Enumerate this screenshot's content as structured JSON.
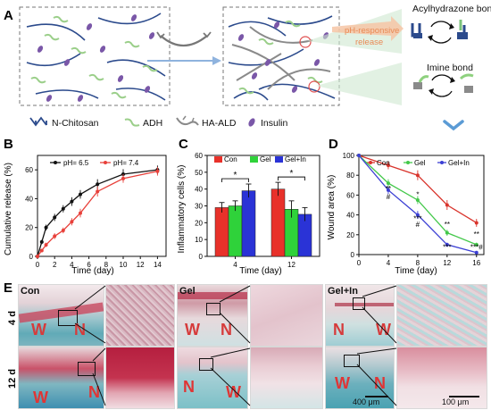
{
  "panel_a": {
    "letter": "A",
    "arrow_text": "pH-responsive release",
    "acyl_label": "Acylhydrazone bond",
    "imine_label": "Imine bond",
    "legend": [
      {
        "label": "N-Chitosan",
        "icon": "chitosan-icon",
        "color": "#2b4a8c"
      },
      {
        "label": "ADH",
        "icon": "adh-icon",
        "color": "#9bcf8a"
      },
      {
        "label": "HA-ALD",
        "icon": "ha-ald-icon",
        "color": "#8a8a8a"
      },
      {
        "label": "Insulin",
        "icon": "insulin-icon",
        "color": "#7a57a8"
      }
    ],
    "release_color": "#f0a070",
    "chevron_color": "#5b9bd5"
  },
  "panel_b": {
    "letter": "B",
    "chart_data": {
      "type": "line",
      "xlabel": "Time (day)",
      "ylabel": "Cumulative release (%)",
      "xlim": [
        0,
        15
      ],
      "ylim": [
        0,
        70
      ],
      "xticks": [
        0,
        2,
        4,
        6,
        8,
        10,
        12,
        14
      ],
      "yticks": [
        0,
        20,
        40,
        60
      ],
      "legend_position": "top-center",
      "series": [
        {
          "name": "pH= 6.5",
          "color": "#111111",
          "x": [
            0,
            0.5,
            1,
            2,
            3,
            4,
            5,
            7,
            10,
            14
          ],
          "y": [
            0,
            10,
            20,
            27,
            33,
            38,
            43,
            50,
            57,
            60
          ],
          "err": [
            0,
            1.5,
            2,
            2.5,
            2.5,
            3,
            3,
            3.5,
            3.5,
            3
          ]
        },
        {
          "name": "pH= 7.4",
          "color": "#e8403a",
          "x": [
            0,
            0.5,
            1,
            2,
            3,
            4,
            5,
            7,
            10,
            14
          ],
          "y": [
            0,
            4,
            8,
            14,
            18,
            24,
            30,
            45,
            54,
            59
          ],
          "err": [
            0,
            1,
            1.5,
            2,
            2,
            2.5,
            3,
            3.5,
            3,
            3
          ]
        }
      ]
    }
  },
  "panel_c": {
    "letter": "C",
    "chart_data": {
      "type": "bar",
      "xlabel": "Time (day)",
      "ylabel": "Inflammatory cells (%)",
      "ylim": [
        0,
        60
      ],
      "yticks": [
        0,
        10,
        20,
        30,
        40,
        50,
        60
      ],
      "categories": [
        "4",
        "12"
      ],
      "legend_position": "top",
      "series": [
        {
          "name": "Con",
          "color": "#e8312a",
          "values": [
            29,
            40
          ],
          "err": [
            3,
            4
          ]
        },
        {
          "name": "Gel",
          "color": "#2fd23a",
          "values": [
            30,
            28
          ],
          "err": [
            3,
            5
          ]
        },
        {
          "name": "Gel+In",
          "color": "#2a33d6",
          "values": [
            39,
            25
          ],
          "err": [
            4,
            4
          ]
        }
      ],
      "significance": [
        {
          "label": "*",
          "group": 0
        },
        {
          "label": "*",
          "group": 1
        }
      ]
    }
  },
  "panel_d": {
    "letter": "D",
    "chart_data": {
      "type": "line",
      "xlabel": "Time (day)",
      "ylabel": "Wound area (%)",
      "xlim": [
        0,
        17
      ],
      "ylim": [
        0,
        100
      ],
      "xticks": [
        0,
        4,
        8,
        12,
        16
      ],
      "yticks": [
        0,
        20,
        40,
        60,
        80,
        100
      ],
      "legend_position": "top",
      "series": [
        {
          "name": "Con",
          "color": "#d9342c",
          "x": [
            0,
            4,
            8,
            12,
            16
          ],
          "y": [
            100,
            90,
            80,
            50,
            32
          ],
          "err": [
            0,
            4,
            5,
            5,
            4
          ]
        },
        {
          "name": "Gel",
          "color": "#43c84a",
          "x": [
            0,
            4,
            8,
            12,
            16
          ],
          "y": [
            100,
            72,
            55,
            22,
            10
          ],
          "err": [
            0,
            4,
            4,
            3,
            2
          ]
        },
        {
          "name": "Gel+In",
          "color": "#3b3fd4",
          "x": [
            0,
            4,
            8,
            12,
            16
          ],
          "y": [
            100,
            65,
            40,
            10,
            2
          ],
          "err": [
            0,
            4,
            4,
            2,
            1
          ]
        }
      ],
      "annotations": [
        {
          "text": "**",
          "x": 4,
          "y": 64
        },
        {
          "text": "#",
          "x": 4,
          "y": 56
        },
        {
          "text": "*",
          "x": 8,
          "y": 58
        },
        {
          "text": "***",
          "x": 8,
          "y": 34
        },
        {
          "text": "#",
          "x": 8,
          "y": 28
        },
        {
          "text": "**",
          "x": 12,
          "y": 28
        },
        {
          "text": "**",
          "x": 16,
          "y": 18
        },
        {
          "text": "***",
          "x": 12,
          "y": 5
        },
        {
          "text": "***#",
          "x": 16,
          "y": 5
        }
      ]
    }
  },
  "panel_e": {
    "letter": "E",
    "row_labels": [
      "4 d",
      "12 d"
    ],
    "col_labels": [
      "Con",
      "Gel",
      "Gel+In"
    ],
    "marker_w": "W",
    "marker_n": "N",
    "scale_low": "400 μm",
    "scale_high": "100 μm",
    "stain_tissue": "#5aa9b5",
    "stain_wound": "#c4415a",
    "stain_background": "#e4d3d6"
  }
}
